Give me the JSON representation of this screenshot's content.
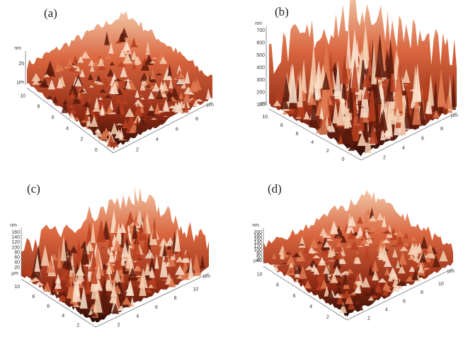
{
  "panels": [
    {
      "label": "(a)",
      "z_unit": "nm",
      "z_ticks": [
        "25"
      ],
      "y_unit": "µm",
      "y_ticks": [
        "10",
        "8",
        "6",
        "4",
        "2",
        "0"
      ],
      "x_ticks": [
        "2",
        "4",
        "6",
        "8"
      ],
      "x_unit": "µm"
    },
    {
      "label": "(b)",
      "z_unit": "nm",
      "z_ticks": [
        "700",
        "600",
        "500",
        "400",
        "300",
        "200",
        "100"
      ],
      "y_unit": "µm",
      "y_ticks": [
        "10",
        "8",
        "6",
        "4",
        "2",
        "0"
      ],
      "x_ticks": [
        "2",
        "4",
        "6",
        "8"
      ],
      "x_unit": "µm"
    },
    {
      "label": "(c)",
      "z_unit": "nm",
      "z_ticks": [
        "160",
        "140",
        "120",
        "100",
        "80",
        "60",
        "40",
        "20"
      ],
      "y_unit": "µm",
      "y_ticks": [
        "10",
        "8",
        "6",
        "4",
        "2"
      ],
      "x_ticks": [
        "2",
        "4",
        "6",
        "8",
        "10"
      ],
      "x_unit": "µm"
    },
    {
      "label": "(d)",
      "z_unit": "nm",
      "z_ticks": [
        "200",
        "180",
        "160",
        "140",
        "120",
        "100",
        "80",
        "60",
        "40"
      ],
      "y_unit": "µm",
      "y_ticks": [
        "10",
        "8",
        "6",
        "4",
        "2"
      ],
      "x_ticks": [
        "2",
        "4",
        "6",
        "8",
        "10"
      ],
      "x_unit": "µm"
    }
  ]
}
